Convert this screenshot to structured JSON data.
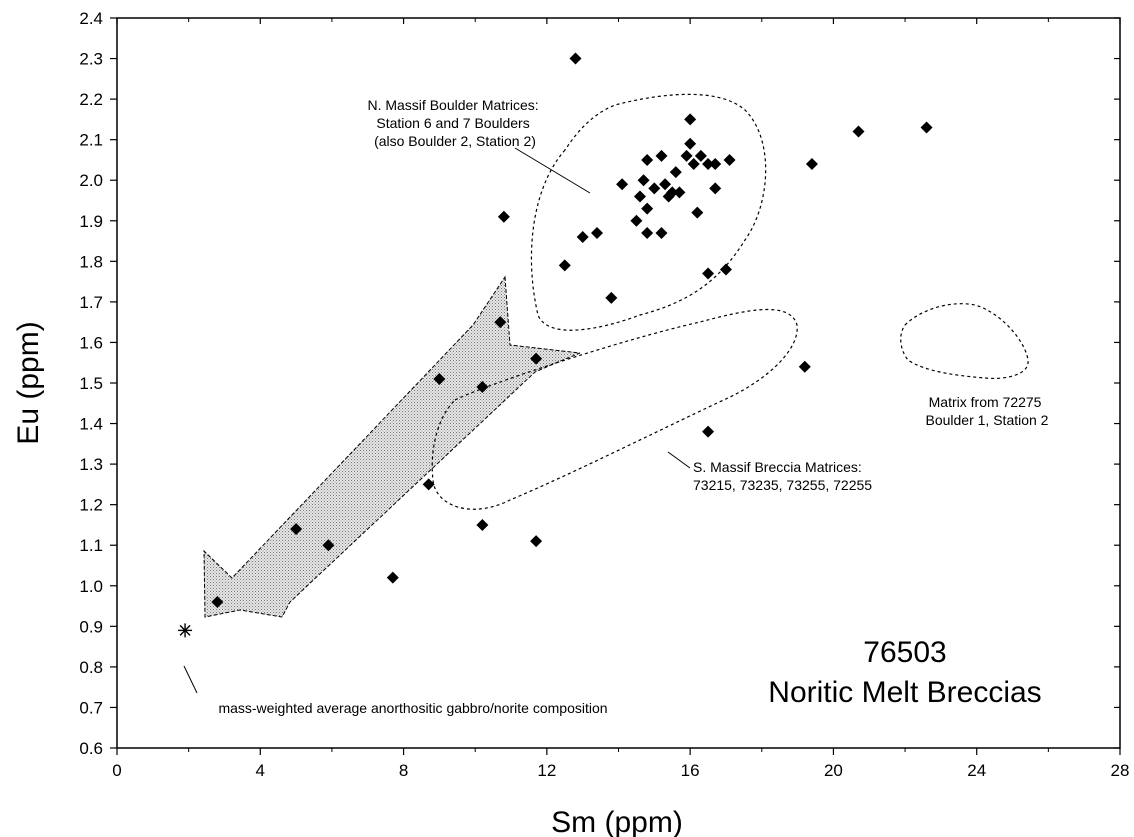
{
  "chart_data": {
    "type": "scatter",
    "title": "76503",
    "subtitle": "Noritic Melt Breccias",
    "xlabel": "Sm (ppm)",
    "ylabel": "Eu (ppm)",
    "xlim": [
      0,
      28
    ],
    "ylim": [
      0.6,
      2.4
    ],
    "xticks": [
      "0",
      "4",
      "8",
      "12",
      "16",
      "20",
      "24",
      "28"
    ],
    "yticks": [
      "0.6",
      "0.7",
      "0.8",
      "0.9",
      "1.0",
      "1.1",
      "1.2",
      "1.3",
      "1.4",
      "1.5",
      "1.6",
      "1.7",
      "1.8",
      "1.9",
      "2.0",
      "2.1",
      "2.2",
      "2.3",
      "2.4"
    ],
    "grid": false,
    "series": [
      {
        "marker": "diamond",
        "points": [
          [
            12.8,
            2.3
          ],
          [
            22.6,
            2.13
          ],
          [
            20.7,
            2.12
          ],
          [
            19.4,
            2.04
          ],
          [
            16.0,
            2.15
          ],
          [
            16.0,
            2.09
          ],
          [
            15.9,
            2.06
          ],
          [
            16.1,
            2.04
          ],
          [
            16.3,
            2.06
          ],
          [
            16.5,
            2.04
          ],
          [
            16.7,
            2.04
          ],
          [
            17.1,
            2.05
          ],
          [
            16.7,
            1.98
          ],
          [
            15.2,
            2.06
          ],
          [
            14.8,
            2.05
          ],
          [
            15.0,
            1.98
          ],
          [
            15.3,
            1.99
          ],
          [
            15.5,
            1.97
          ],
          [
            15.6,
            2.02
          ],
          [
            15.4,
            1.96
          ],
          [
            15.7,
            1.97
          ],
          [
            14.6,
            1.96
          ],
          [
            14.7,
            2.0
          ],
          [
            14.1,
            1.99
          ],
          [
            14.8,
            1.93
          ],
          [
            14.5,
            1.9
          ],
          [
            14.8,
            1.87
          ],
          [
            15.2,
            1.87
          ],
          [
            16.2,
            1.92
          ],
          [
            13.0,
            1.86
          ],
          [
            13.4,
            1.87
          ],
          [
            12.5,
            1.79
          ],
          [
            13.8,
            1.71
          ],
          [
            16.5,
            1.77
          ],
          [
            17.0,
            1.78
          ],
          [
            10.8,
            1.91
          ],
          [
            10.7,
            1.65
          ],
          [
            11.7,
            1.56
          ],
          [
            9.0,
            1.51
          ],
          [
            10.2,
            1.49
          ],
          [
            19.2,
            1.54
          ],
          [
            16.5,
            1.38
          ],
          [
            8.7,
            1.25
          ],
          [
            10.2,
            1.15
          ],
          [
            11.7,
            1.11
          ],
          [
            5.0,
            1.14
          ],
          [
            5.9,
            1.1
          ],
          [
            7.7,
            1.02
          ],
          [
            2.8,
            0.96
          ]
        ]
      },
      {
        "marker": "asterisk",
        "points": [
          [
            1.9,
            0.89
          ]
        ]
      }
    ],
    "annotations": [
      {
        "lines": [
          "N. Massif Boulder Matrices:",
          "Station 6 and 7 Boulders",
          "(also Boulder 2, Station 2)"
        ]
      },
      {
        "lines": [
          "S. Massif Breccia Matrices:",
          "73215, 73235, 73255, 72255"
        ]
      },
      {
        "lines": [
          "Matrix from 72275",
          "Boulder 1, Station 2"
        ]
      },
      {
        "lines": [
          "mass-weighted average anorthositic gabbro/norite composition"
        ]
      }
    ],
    "colors": {
      "marker": "#000000",
      "arrow_fill": "#d4d4d4",
      "outline": "#000000"
    }
  }
}
